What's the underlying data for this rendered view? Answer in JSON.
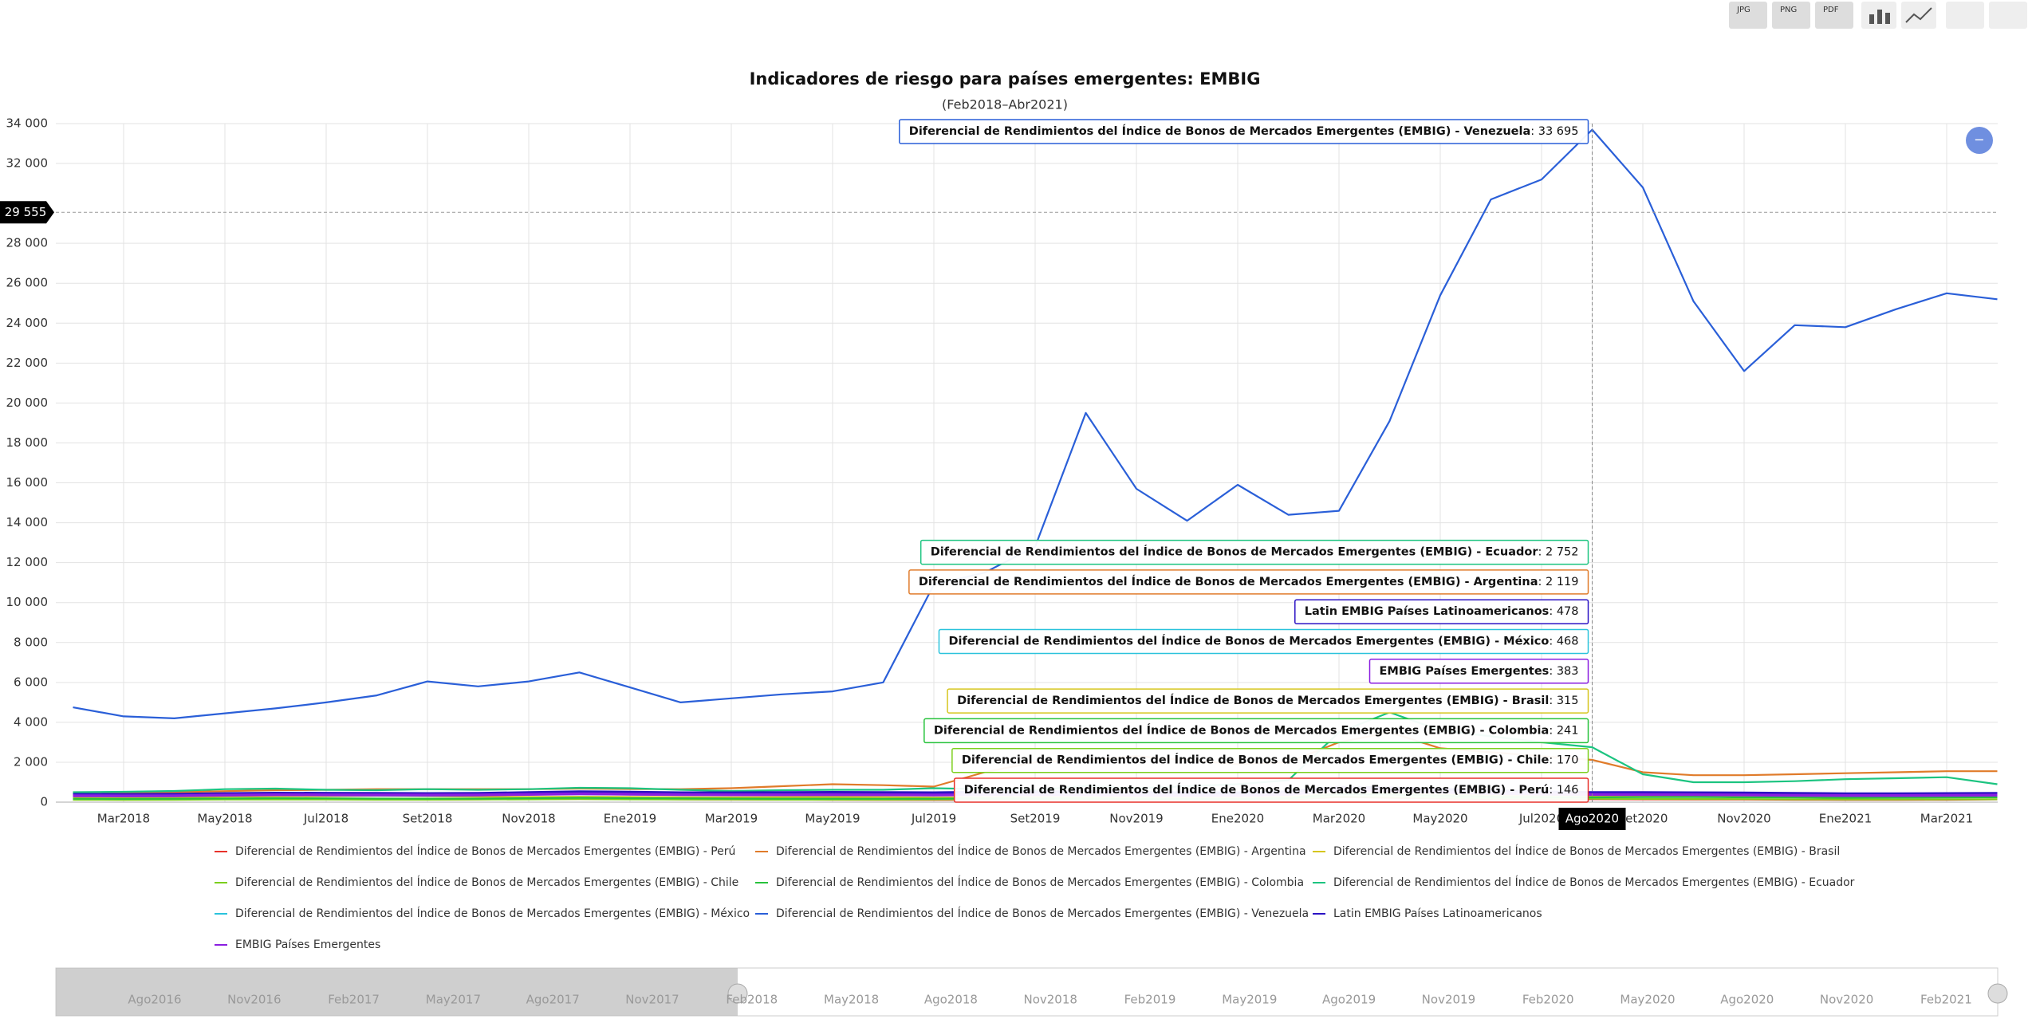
{
  "toolbar": [
    "JPG",
    "PNG",
    "PDF"
  ],
  "reset_button": "−",
  "chart_data": {
    "type": "line",
    "title": "Indicadores de riesgo para países emergentes: EMBIG",
    "subtitle": "(Feb2018–Abr2021)",
    "categories": [
      null,
      "Mar2018",
      null,
      "May2018",
      null,
      "Jul2018",
      null,
      "Set2018",
      null,
      "Nov2018",
      null,
      "Ene2019",
      null,
      "Mar2019",
      null,
      "May2019",
      null,
      "Jul2019",
      null,
      "Set2019",
      null,
      "Nov2019",
      null,
      "Ene2020",
      null,
      "Mar2020",
      null,
      "May2020",
      null,
      "Jul2020",
      "Ago2020",
      "Set2020",
      null,
      "Nov2020",
      null,
      "Ene2021",
      null,
      "Mar2021",
      null
    ],
    "ylim": [
      0,
      34000
    ],
    "yticks": [
      0,
      {
        "value": 2000,
        "label": "2 000"
      },
      {
        "value": 4000,
        "label": "4 000"
      },
      {
        "value": 6000,
        "label": "6 000"
      },
      {
        "value": 8000,
        "label": "8 000"
      },
      {
        "value": 10000,
        "label": "10 000"
      },
      {
        "value": 12000,
        "label": "12 000"
      },
      {
        "value": 14000,
        "label": "14 000"
      },
      {
        "value": 16000,
        "label": "16 000"
      },
      {
        "value": 18000,
        "label": "18 000"
      },
      {
        "value": 20000,
        "label": "20 000"
      },
      {
        "value": 22000,
        "label": "22 000"
      },
      {
        "value": 24000,
        "label": "24 000"
      },
      {
        "value": 26000,
        "label": "26 000"
      },
      {
        "value": 28000,
        "label": "28 000"
      },
      {
        "value": 32000,
        "label": "32 000"
      },
      {
        "value": 34000,
        "label": "34 000"
      }
    ],
    "grid": true,
    "crosshair_y": {
      "value": 29555,
      "label": "29 555"
    },
    "series": [
      {
        "name": "Diferencial de Rendimientos del Índice de Bonos de Mercados Emergentes (EMBIG) - Perú",
        "color": "#e8312a",
        "values": [
          140,
          135,
          140,
          150,
          160,
          150,
          140,
          135,
          140,
          150,
          160,
          150,
          140,
          130,
          125,
          120,
          115,
          110,
          115,
          110,
          110,
          105,
          100,
          100,
          130,
          250,
          220,
          180,
          160,
          150,
          146,
          140,
          135,
          130,
          120,
          115,
          115,
          120,
          140
        ],
        "value_labels": [
          null,
          null,
          null,
          null,
          null,
          null,
          null,
          null,
          null,
          null,
          null,
          null,
          null,
          null,
          null,
          null,
          null,
          null,
          null,
          null,
          null,
          null,
          null,
          null,
          null,
          null,
          null,
          null,
          null,
          null,
          "146",
          null,
          null,
          null,
          null,
          null,
          null,
          null,
          null
        ]
      },
      {
        "name": "Diferencial de Rendimientos del Índice de Bonos de Mercados Emergentes (EMBIG) - Argentina",
        "color": "#e07b2a",
        "values": [
          400,
          450,
          500,
          550,
          600,
          620,
          650,
          650,
          650,
          650,
          680,
          660,
          650,
          700,
          800,
          900,
          850,
          780,
          1500,
          2000,
          2100,
          2300,
          2100,
          1900,
          2000,
          3000,
          3500,
          2700,
          2500,
          2300,
          2119,
          1500,
          1350,
          1350,
          1400,
          1450,
          1500,
          1550,
          1550
        ],
        "value_labels": [
          null,
          null,
          null,
          null,
          null,
          null,
          null,
          null,
          null,
          null,
          null,
          null,
          null,
          null,
          null,
          null,
          null,
          null,
          null,
          null,
          null,
          null,
          null,
          null,
          null,
          null,
          null,
          null,
          null,
          null,
          "2 119",
          null,
          null,
          null,
          null,
          null,
          null,
          null,
          null
        ]
      },
      {
        "name": "Diferencial de Rendimientos del Índice de Bonos de Mercados Emergentes (EMBIG) - Brasil",
        "color": "#d6c61e",
        "values": [
          230,
          225,
          230,
          270,
          290,
          300,
          320,
          300,
          270,
          260,
          270,
          260,
          245,
          240,
          250,
          255,
          250,
          230,
          240,
          250,
          240,
          230,
          215,
          215,
          260,
          430,
          400,
          370,
          340,
          325,
          315,
          320,
          320,
          300,
          280,
          270,
          275,
          290,
          300
        ],
        "value_labels": [
          null,
          null,
          null,
          null,
          null,
          null,
          null,
          null,
          null,
          null,
          null,
          null,
          null,
          null,
          null,
          null,
          null,
          null,
          null,
          null,
          null,
          null,
          null,
          null,
          null,
          null,
          null,
          null,
          null,
          null,
          "315",
          null,
          null,
          null,
          null,
          null,
          null,
          null,
          null
        ]
      },
      {
        "name": "Diferencial de Rendimientos del Índice de Bonos de Mercados Emergentes (EMBIG) - Chile",
        "color": "#7ccf1d",
        "values": [
          120,
          115,
          120,
          130,
          135,
          130,
          125,
          125,
          130,
          140,
          150,
          140,
          135,
          130,
          125,
          125,
          125,
          135,
          145,
          140,
          145,
          150,
          140,
          135,
          165,
          280,
          250,
          220,
          200,
          185,
          170,
          160,
          155,
          150,
          140,
          135,
          130,
          140,
          145
        ],
        "value_labels": [
          null,
          null,
          null,
          null,
          null,
          null,
          null,
          null,
          null,
          null,
          null,
          null,
          null,
          null,
          null,
          null,
          null,
          null,
          null,
          null,
          null,
          null,
          null,
          null,
          null,
          null,
          null,
          null,
          null,
          null,
          "170",
          null,
          null,
          null,
          null,
          null,
          null,
          null,
          null
        ]
      },
      {
        "name": "Diferencial de Rendimientos del Índice de Bonos de Mercados Emergentes (EMBIG) - Colombia",
        "color": "#27c23c",
        "values": [
          170,
          165,
          170,
          185,
          200,
          190,
          180,
          175,
          180,
          200,
          220,
          200,
          190,
          180,
          175,
          175,
          170,
          175,
          190,
          185,
          185,
          175,
          165,
          165,
          200,
          400,
          380,
          320,
          270,
          255,
          241,
          250,
          255,
          240,
          230,
          220,
          225,
          235,
          245
        ],
        "value_labels": [
          null,
          null,
          null,
          null,
          null,
          null,
          null,
          null,
          null,
          null,
          null,
          null,
          null,
          null,
          null,
          null,
          null,
          null,
          null,
          null,
          null,
          null,
          null,
          null,
          null,
          null,
          null,
          null,
          null,
          null,
          "241",
          null,
          null,
          null,
          null,
          null,
          null,
          null,
          null
        ]
      },
      {
        "name": "Diferencial de Rendimientos del Índice de Bonos de Mercados Emergentes (EMBIG) - Ecuador",
        "color": "#1cc480",
        "values": [
          500,
          520,
          560,
          650,
          680,
          620,
          600,
          650,
          620,
          650,
          720,
          700,
          620,
          560,
          600,
          620,
          620,
          700,
          650,
          600,
          820,
          700,
          800,
          900,
          1100,
          3500,
          4500,
          3600,
          3300,
          3000,
          2752,
          1400,
          1000,
          1000,
          1050,
          1150,
          1200,
          1250,
          900
        ],
        "value_labels": [
          null,
          null,
          null,
          null,
          null,
          null,
          null,
          null,
          null,
          null,
          null,
          null,
          null,
          null,
          null,
          null,
          null,
          null,
          null,
          null,
          null,
          null,
          null,
          null,
          null,
          null,
          null,
          null,
          null,
          null,
          "2 752",
          null,
          null,
          null,
          null,
          null,
          null,
          null,
          null
        ]
      },
      {
        "name": "Diferencial de Rendimientos del Índice de Bonos de Mercados Emergentes (EMBIG) - México",
        "color": "#2ac3dc",
        "values": [
          300,
          290,
          300,
          330,
          350,
          340,
          330,
          320,
          330,
          380,
          400,
          380,
          360,
          350,
          345,
          345,
          345,
          340,
          350,
          340,
          330,
          320,
          310,
          310,
          360,
          670,
          640,
          560,
          500,
          480,
          468,
          470,
          465,
          430,
          400,
          380,
          380,
          400,
          420
        ],
        "value_labels": [
          null,
          null,
          null,
          null,
          null,
          null,
          null,
          null,
          null,
          null,
          null,
          null,
          null,
          null,
          null,
          null,
          null,
          null,
          null,
          null,
          null,
          null,
          null,
          null,
          null,
          null,
          null,
          null,
          null,
          null,
          "468",
          null,
          null,
          null,
          null,
          null,
          null,
          null,
          null
        ]
      },
      {
        "name": "Diferencial de Rendimientos del Índice de Bonos de Mercados Emergentes (EMBIG) - Venezuela",
        "color": "#2a5fd8",
        "values": [
          4750,
          4300,
          4200,
          4450,
          4700,
          5000,
          5350,
          6050,
          5800,
          6050,
          6500,
          5750,
          5000,
          5200,
          5400,
          5550,
          6000,
          10900,
          11500,
          12800,
          19500,
          15700,
          14100,
          15900,
          14400,
          14600,
          19100,
          25400,
          30200,
          31200,
          33695,
          30800,
          25100,
          21600,
          23900,
          23800,
          24700,
          25500,
          25200
        ],
        "value_labels": [
          null,
          null,
          null,
          null,
          null,
          null,
          null,
          null,
          null,
          null,
          null,
          null,
          null,
          null,
          null,
          null,
          null,
          null,
          null,
          null,
          null,
          null,
          null,
          null,
          null,
          null,
          null,
          null,
          null,
          null,
          "33 695",
          null,
          null,
          null,
          null,
          null,
          null,
          null,
          null
        ]
      },
      {
        "name": "Latin EMBIG Países Latinoamericanos",
        "color": "#2b12c4",
        "values": [
          390,
          385,
          395,
          430,
          450,
          445,
          440,
          430,
          440,
          480,
          520,
          500,
          470,
          470,
          480,
          490,
          480,
          470,
          500,
          510,
          530,
          480,
          470,
          470,
          520,
          750,
          720,
          640,
          570,
          520,
          478,
          480,
          470,
          460,
          440,
          420,
          420,
          430,
          440
        ],
        "value_labels": [
          null,
          null,
          null,
          null,
          null,
          null,
          null,
          null,
          null,
          null,
          null,
          null,
          null,
          null,
          null,
          null,
          null,
          null,
          null,
          null,
          null,
          null,
          null,
          null,
          null,
          null,
          null,
          null,
          null,
          null,
          "478",
          null,
          null,
          null,
          null,
          null,
          null,
          null,
          null
        ]
      },
      {
        "name": "EMBIG Países Emergentes",
        "color": "#8a1ee0",
        "values": [
          320,
          315,
          320,
          350,
          370,
          365,
          360,
          355,
          360,
          390,
          420,
          400,
          380,
          370,
          370,
          375,
          370,
          360,
          370,
          365,
          360,
          340,
          330,
          330,
          380,
          620,
          580,
          500,
          430,
          400,
          383,
          380,
          375,
          360,
          340,
          330,
          330,
          340,
          350
        ],
        "value_labels": [
          null,
          null,
          null,
          null,
          null,
          null,
          null,
          null,
          null,
          null,
          null,
          null,
          null,
          null,
          null,
          null,
          null,
          null,
          null,
          null,
          null,
          null,
          null,
          null,
          null,
          null,
          null,
          null,
          null,
          null,
          "383",
          null,
          null,
          null,
          null,
          null,
          null,
          null,
          null
        ]
      }
    ],
    "navigator_labels": [
      "Ago2016",
      "Nov2016",
      "Feb2017",
      "May2017",
      "Ago2017",
      "Nov2017",
      "Feb2018",
      "May2018",
      "Ago2018",
      "Nov2018",
      "Feb2019",
      "May2019",
      "Ago2019",
      "Nov2019",
      "Feb2020",
      "May2020",
      "Ago2020",
      "Nov2020",
      "Feb2021"
    ]
  }
}
